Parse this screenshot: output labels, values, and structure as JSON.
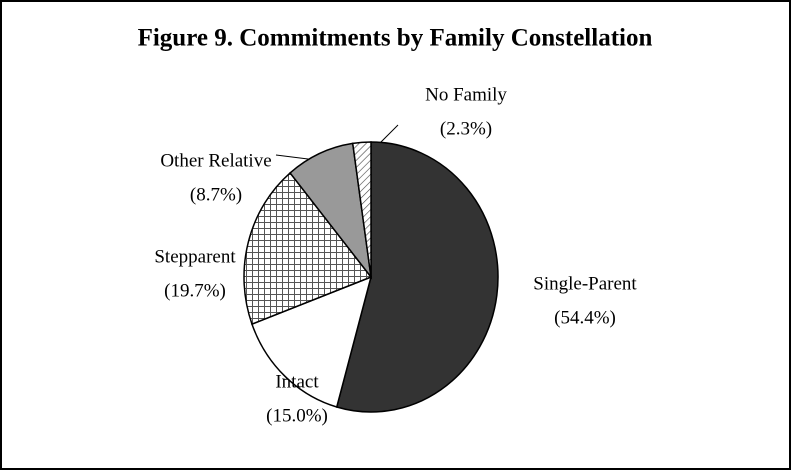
{
  "chart_data": {
    "type": "pie",
    "title": "Figure 9.  Commitments by Family Constellation",
    "categories": [
      "Single-Parent",
      "Intact",
      "Stepparent",
      "Other Relative",
      "No Family"
    ],
    "values": [
      54.4,
      15.0,
      19.7,
      8.7,
      2.3
    ],
    "value_labels": [
      "(54.4%)",
      "(15.0%)",
      "(19.7%)",
      "(8.7%)",
      "(2.3%)"
    ],
    "colors": [
      "#333333",
      "#ffffff",
      "#ffffff",
      "#999999",
      "#ffffff"
    ],
    "patterns": [
      "solid",
      "solid",
      "crosshatch",
      "solid",
      "diagonal"
    ]
  }
}
